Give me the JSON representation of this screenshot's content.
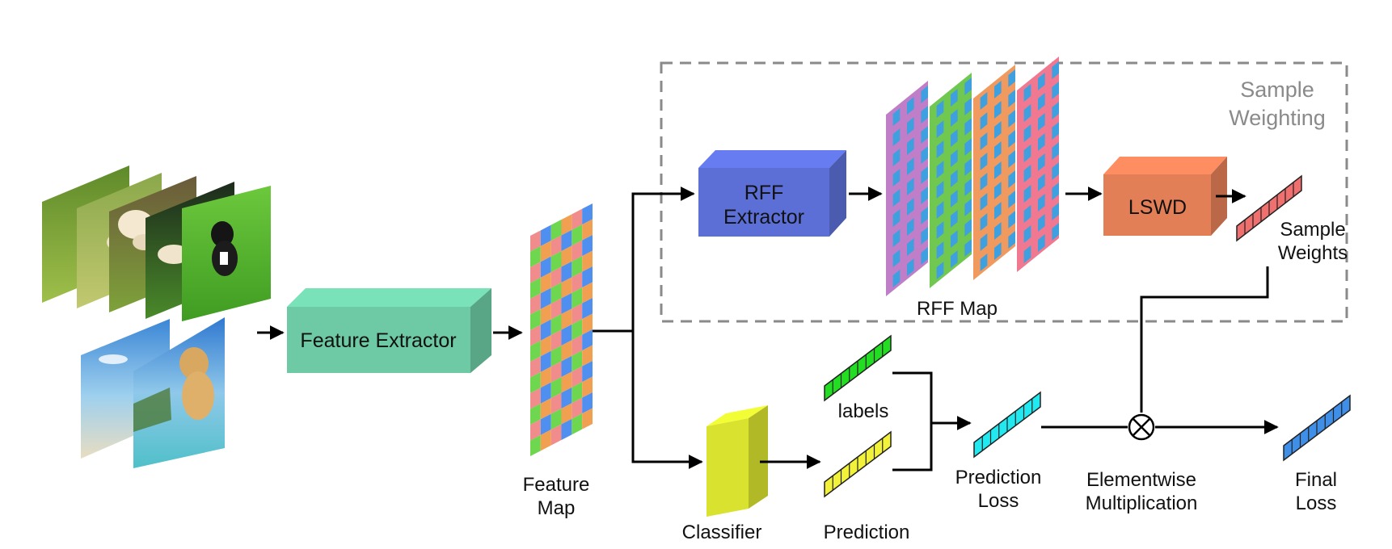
{
  "colors": {
    "feature_extractor": "#6dcaa5",
    "rff_extractor": "#5b6fd6",
    "lswd": "#e37f57",
    "classifier": "#d9e22f",
    "labels_vector": "#22dd22",
    "prediction_vector": "#f2f23a",
    "prediction_loss_vector": "#22e8f0",
    "final_loss_vector": "#3f8ee8",
    "sample_weights_vector": "#f07070",
    "feature_map_palette": [
      "#f08c8c",
      "#4f8ff0",
      "#6fd650",
      "#f0a050"
    ],
    "rff_palette": [
      "#c07ec8",
      "#3fa0e0",
      "#70c850",
      "#f07890"
    ],
    "dashed_region": "#8a8a8a"
  },
  "icons": {
    "input_images_icon": "stack-of-dog-photos-icon",
    "multiply_icon": "circled-times-icon"
  },
  "nodes": {
    "sample_weighting": [
      "Sample",
      "Weighting"
    ],
    "feature_extractor": "Feature Extractor",
    "rff_extractor": [
      "RFF",
      "Extractor"
    ],
    "lswd": "LSWD",
    "feature_map": [
      "Feature",
      "Map"
    ],
    "rff_map": "RFF Map",
    "sample_weights": [
      "Sample",
      "Weights"
    ],
    "labels": "labels",
    "prediction": "Prediction",
    "classifier": "Classifier",
    "prediction_loss": [
      "Prediction",
      "Loss"
    ],
    "elementwise_multiplication": [
      "Elementwise",
      "Multiplication"
    ],
    "final_loss": [
      "Final",
      "Loss"
    ]
  }
}
